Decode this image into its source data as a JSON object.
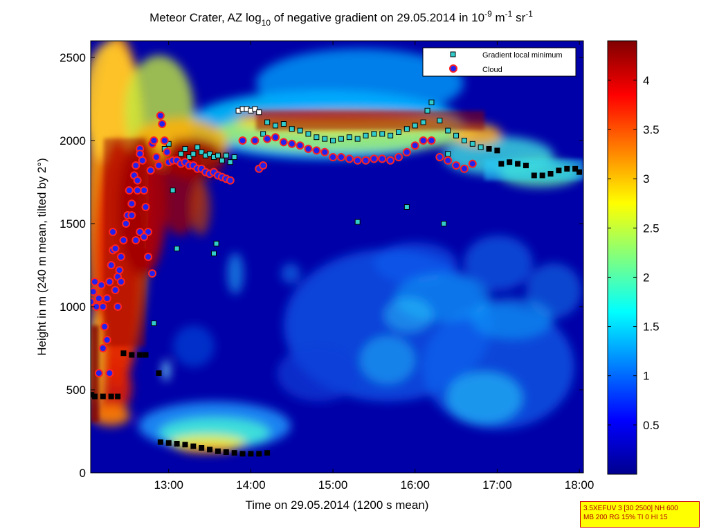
{
  "chart_data": {
    "type": "heatmap",
    "title": {
      "main_before": "Meteor Crater, AZ log",
      "sub10": "10",
      "main_mid": " of negative gradient on 29.05.2014 in 10",
      "sup_exp": "-9",
      "unit_m": " m",
      "sup_m": "-1",
      "unit_sr": " sr",
      "sup_sr": "-1"
    },
    "xlabel": "Time on 29.05.2014 (1200 s mean)",
    "ylabel": "Height in m (240 m mean, tilted by 2°)",
    "x_range_hours": [
      12.05,
      18.05
    ],
    "ylim": [
      0,
      2600
    ],
    "x_ticks": [
      {
        "value": 13,
        "label": "13:00"
      },
      {
        "value": 14,
        "label": "14:00"
      },
      {
        "value": 15,
        "label": "15:00"
      },
      {
        "value": 16,
        "label": "16:00"
      },
      {
        "value": 17,
        "label": "17:00"
      },
      {
        "value": 18,
        "label": "18:00"
      }
    ],
    "y_ticks": [
      {
        "value": 0,
        "label": "0"
      },
      {
        "value": 500,
        "label": "500"
      },
      {
        "value": 1000,
        "label": "1000"
      },
      {
        "value": 1500,
        "label": "1500"
      },
      {
        "value": 2000,
        "label": "2000"
      },
      {
        "value": 2500,
        "label": "2500"
      }
    ],
    "colorbar": {
      "range": [
        0,
        4.4
      ],
      "ticks": [
        {
          "value": 0.5,
          "label": "0.5"
        },
        {
          "value": 1,
          "label": "1"
        },
        {
          "value": 1.5,
          "label": "1.5"
        },
        {
          "value": 2,
          "label": "2"
        },
        {
          "value": 2.5,
          "label": "2.5"
        },
        {
          "value": 3,
          "label": "3"
        },
        {
          "value": 3.5,
          "label": "3.5"
        },
        {
          "value": 4,
          "label": "4"
        }
      ]
    },
    "legend": {
      "placement": "top-right",
      "entries": [
        {
          "label": "Gradient local minimum",
          "marker": "square",
          "color": "#33cccc"
        },
        {
          "label": "Cloud",
          "marker": "circle",
          "color": "#2222ee",
          "edge": "#ff2222"
        }
      ]
    },
    "series": {
      "gradient_local_minimum": [
        [
          12.06,
          470
        ],
        [
          12.1,
          460
        ],
        [
          12.2,
          460
        ],
        [
          12.3,
          460
        ],
        [
          12.38,
          460
        ],
        [
          12.45,
          720
        ],
        [
          12.55,
          710
        ],
        [
          12.65,
          710
        ],
        [
          12.72,
          710
        ],
        [
          12.82,
          900
        ],
        [
          12.88,
          600
        ],
        [
          12.9,
          185
        ],
        [
          13.0,
          180
        ],
        [
          13.1,
          175
        ],
        [
          13.2,
          170
        ],
        [
          13.3,
          160
        ],
        [
          13.4,
          150
        ],
        [
          13.5,
          140
        ],
        [
          13.6,
          130
        ],
        [
          13.7,
          125
        ],
        [
          13.8,
          120
        ],
        [
          13.9,
          115
        ],
        [
          14.0,
          115
        ],
        [
          14.1,
          115
        ],
        [
          14.2,
          120
        ],
        [
          13.55,
          1320
        ],
        [
          13.58,
          1380
        ],
        [
          12.95,
          1950
        ],
        [
          13.0,
          1980
        ],
        [
          13.05,
          1700
        ],
        [
          13.1,
          1350
        ],
        [
          13.15,
          1920
        ],
        [
          13.2,
          1950
        ],
        [
          13.25,
          1900
        ],
        [
          13.3,
          1920
        ],
        [
          13.35,
          1960
        ],
        [
          13.4,
          1930
        ],
        [
          13.45,
          1910
        ],
        [
          13.5,
          1920
        ],
        [
          13.55,
          1900
        ],
        [
          13.6,
          1910
        ],
        [
          13.65,
          1880
        ],
        [
          13.7,
          1910
        ],
        [
          13.75,
          1870
        ],
        [
          13.8,
          1900
        ],
        [
          13.85,
          2180
        ],
        [
          13.9,
          2190
        ],
        [
          13.95,
          2190
        ],
        [
          14.0,
          2180
        ],
        [
          14.05,
          2190
        ],
        [
          14.1,
          2170
        ],
        [
          14.15,
          2040
        ],
        [
          14.2,
          2110
        ],
        [
          14.3,
          2090
        ],
        [
          14.4,
          2100
        ],
        [
          14.5,
          2070
        ],
        [
          14.6,
          2060
        ],
        [
          14.7,
          2040
        ],
        [
          14.8,
          2020
        ],
        [
          14.9,
          2010
        ],
        [
          15.0,
          2000
        ],
        [
          15.1,
          2010
        ],
        [
          15.2,
          2020
        ],
        [
          15.3,
          2010
        ],
        [
          15.4,
          2030
        ],
        [
          15.5,
          2040
        ],
        [
          15.6,
          2040
        ],
        [
          15.7,
          2030
        ],
        [
          15.8,
          2050
        ],
        [
          15.9,
          2070
        ],
        [
          16.0,
          2090
        ],
        [
          16.1,
          2110
        ],
        [
          16.15,
          2180
        ],
        [
          16.2,
          2230
        ],
        [
          16.3,
          2120
        ],
        [
          16.4,
          2060
        ],
        [
          16.5,
          2030
        ],
        [
          16.6,
          2000
        ],
        [
          16.7,
          1980
        ],
        [
          16.8,
          1960
        ],
        [
          16.9,
          1950
        ],
        [
          17.0,
          1940
        ],
        [
          15.9,
          1600
        ],
        [
          16.35,
          1500
        ],
        [
          15.3,
          1510
        ],
        [
          16.4,
          1920
        ],
        [
          17.05,
          1860
        ],
        [
          17.15,
          1870
        ],
        [
          17.25,
          1860
        ],
        [
          17.35,
          1850
        ],
        [
          17.45,
          1790
        ],
        [
          17.55,
          1790
        ],
        [
          17.65,
          1800
        ],
        [
          17.75,
          1820
        ],
        [
          17.85,
          1830
        ],
        [
          17.95,
          1830
        ],
        [
          18.0,
          1810
        ]
      ],
      "cloud": [
        [
          12.05,
          1030
        ],
        [
          12.08,
          1090
        ],
        [
          12.1,
          1150
        ],
        [
          12.12,
          1000
        ],
        [
          12.15,
          1050
        ],
        [
          12.18,
          1130
        ],
        [
          12.2,
          1000
        ],
        [
          12.22,
          880
        ],
        [
          12.25,
          1050
        ],
        [
          12.28,
          1150
        ],
        [
          12.3,
          1250
        ],
        [
          12.32,
          1340
        ],
        [
          12.35,
          1100
        ],
        [
          12.38,
          1180
        ],
        [
          12.4,
          1220
        ],
        [
          12.42,
          1300
        ],
        [
          12.45,
          1400
        ],
        [
          12.48,
          1500
        ],
        [
          12.5,
          1550
        ],
        [
          12.52,
          1700
        ],
        [
          12.55,
          1620
        ],
        [
          12.58,
          1790
        ],
        [
          12.6,
          1850
        ],
        [
          12.62,
          1760
        ],
        [
          12.65,
          1950
        ],
        [
          12.68,
          1880
        ],
        [
          12.7,
          1700
        ],
        [
          12.72,
          1600
        ],
        [
          12.75,
          1450
        ],
        [
          12.78,
          1820
        ],
        [
          12.8,
          1980
        ],
        [
          12.82,
          2000
        ],
        [
          12.85,
          1900
        ],
        [
          12.88,
          1850
        ],
        [
          12.9,
          2150
        ],
        [
          12.92,
          2100
        ],
        [
          12.95,
          2000
        ],
        [
          12.98,
          1930
        ],
        [
          13.0,
          1870
        ],
        [
          13.05,
          1880
        ],
        [
          13.1,
          1880
        ],
        [
          13.15,
          1860
        ],
        [
          13.2,
          1870
        ],
        [
          13.25,
          1850
        ],
        [
          13.3,
          1850
        ],
        [
          13.35,
          1830
        ],
        [
          13.4,
          1830
        ],
        [
          13.45,
          1810
        ],
        [
          13.5,
          1800
        ],
        [
          13.55,
          1810
        ],
        [
          13.6,
          1790
        ],
        [
          13.65,
          1780
        ],
        [
          13.7,
          1770
        ],
        [
          13.75,
          1760
        ],
        [
          12.15,
          600
        ],
        [
          12.2,
          750
        ],
        [
          12.25,
          800
        ],
        [
          12.28,
          600
        ],
        [
          12.32,
          1450
        ],
        [
          12.35,
          1350
        ],
        [
          12.38,
          1000
        ],
        [
          12.42,
          1150
        ],
        [
          12.55,
          1550
        ],
        [
          12.6,
          1400
        ],
        [
          12.65,
          1450
        ],
        [
          12.7,
          1420
        ],
        [
          12.75,
          1300
        ],
        [
          12.8,
          1200
        ],
        [
          12.65,
          1920
        ],
        [
          12.62,
          1700
        ],
        [
          13.9,
          2000
        ],
        [
          14.05,
          2000
        ],
        [
          14.1,
          1830
        ],
        [
          14.15,
          1850
        ],
        [
          14.2,
          2010
        ],
        [
          14.3,
          2020
        ],
        [
          14.4,
          1990
        ],
        [
          14.5,
          1980
        ],
        [
          14.6,
          1970
        ],
        [
          14.7,
          1950
        ],
        [
          14.8,
          1940
        ],
        [
          14.9,
          1930
        ],
        [
          15.0,
          1900
        ],
        [
          15.1,
          1900
        ],
        [
          15.2,
          1890
        ],
        [
          15.3,
          1880
        ],
        [
          15.4,
          1880
        ],
        [
          15.5,
          1890
        ],
        [
          15.6,
          1890
        ],
        [
          15.7,
          1880
        ],
        [
          15.8,
          1900
        ],
        [
          15.9,
          1930
        ],
        [
          16.0,
          1970
        ],
        [
          16.1,
          2000
        ],
        [
          16.2,
          2000
        ],
        [
          16.3,
          1900
        ],
        [
          16.4,
          1880
        ],
        [
          16.5,
          1850
        ],
        [
          16.6,
          1830
        ],
        [
          16.7,
          1860
        ]
      ]
    }
  },
  "info_box": {
    "line1": "3.5XEFUV 3 [30 2500] NH 600",
    "line2": "MB 200 RG 15% TI 0 HI 15"
  }
}
